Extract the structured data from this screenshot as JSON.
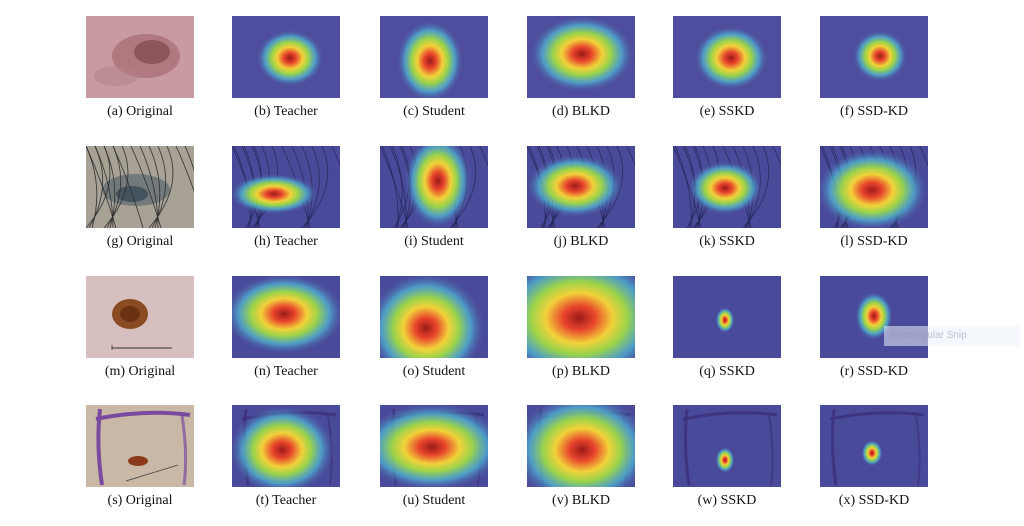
{
  "figure": {
    "rows": [
      {
        "panels": [
          {
            "label": "(a) Original",
            "kind": "original",
            "variant": "pink"
          },
          {
            "label": "(b) Teacher",
            "kind": "heat",
            "variant": "hair-none"
          },
          {
            "label": "(c) Student",
            "kind": "heat",
            "variant": "hair-none"
          },
          {
            "label": "(d) BLKD",
            "kind": "heat",
            "variant": "hair-none"
          },
          {
            "label": "(e) SSKD",
            "kind": "heat",
            "variant": "hair-none"
          },
          {
            "label": "(f) SSD-KD",
            "kind": "heat",
            "variant": "hair-none"
          }
        ]
      },
      {
        "panels": [
          {
            "label": "(g) Original",
            "kind": "original",
            "variant": "hair"
          },
          {
            "label": "(h) Teacher",
            "kind": "heat",
            "variant": "hair"
          },
          {
            "label": "(i) Student",
            "kind": "heat",
            "variant": "hair"
          },
          {
            "label": "(j) BLKD",
            "kind": "heat",
            "variant": "hair"
          },
          {
            "label": "(k) SSKD",
            "kind": "heat",
            "variant": "hair"
          },
          {
            "label": "(l) SSD-KD",
            "kind": "heat",
            "variant": "hair"
          }
        ]
      },
      {
        "panels": [
          {
            "label": "(m) Original",
            "kind": "original",
            "variant": "mole"
          },
          {
            "label": "(n) Teacher",
            "kind": "heat",
            "variant": "plain"
          },
          {
            "label": "(o) Student",
            "kind": "heat",
            "variant": "plain"
          },
          {
            "label": "(p) BLKD",
            "kind": "heat",
            "variant": "plain"
          },
          {
            "label": "(q) SSKD",
            "kind": "heat",
            "variant": "plain"
          },
          {
            "label": "(r) SSD-KD",
            "kind": "heat",
            "variant": "plain"
          }
        ]
      },
      {
        "panels": [
          {
            "label": "(s) Original",
            "kind": "original",
            "variant": "marker"
          },
          {
            "label": "(t) Teacher",
            "kind": "heat",
            "variant": "marker"
          },
          {
            "label": "(u) Student",
            "kind": "heat",
            "variant": "marker"
          },
          {
            "label": "(v) BLKD",
            "kind": "heat",
            "variant": "marker"
          },
          {
            "label": "(w) SSKD",
            "kind": "heat",
            "variant": "marker"
          },
          {
            "label": "(x) SSD-KD",
            "kind": "heat",
            "variant": "marker"
          }
        ]
      }
    ],
    "colors": {
      "heat_background": "#4a4a9a",
      "heat_ring_outer": "#4fb6d6",
      "heat_ring_mid": "#9ad34a",
      "heat_ring_inner": "#f2d23a",
      "heat_hot": "#e8442c",
      "heat_core": "#9c1a18",
      "caption_text": "#111111"
    }
  },
  "overlay": {
    "snip_text": "Rectangular Snip"
  }
}
